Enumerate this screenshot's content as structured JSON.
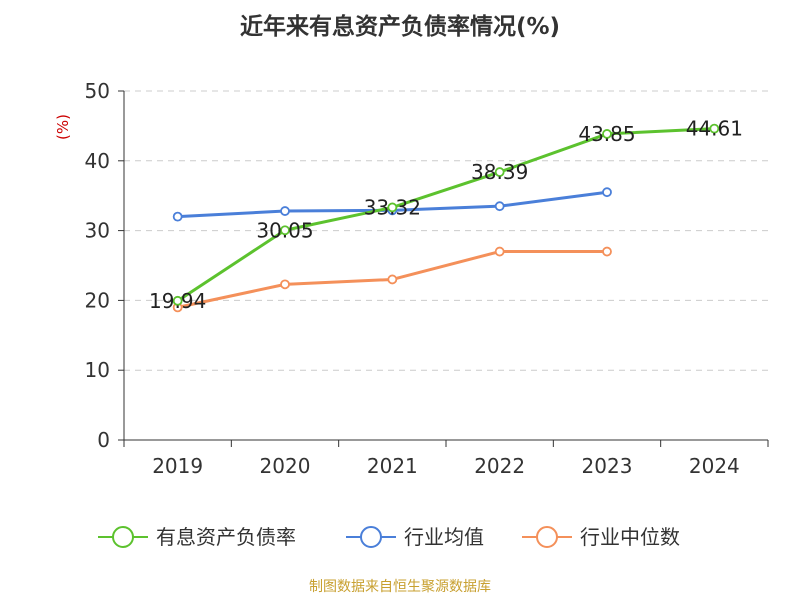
{
  "chart_data": {
    "type": "line",
    "title": "近年来有息资产负债率情况(%)",
    "ylabel": "(%)",
    "xlabel": "",
    "categories": [
      "2019",
      "2020",
      "2021",
      "2022",
      "2023",
      "2024"
    ],
    "ylim": [
      0,
      50
    ],
    "yticks": [
      0,
      10,
      20,
      30,
      40,
      50
    ],
    "grid": true,
    "legend_position": "bottom",
    "series": [
      {
        "name": "有息资产负债率",
        "color": "#5cc22e",
        "values": [
          19.94,
          30.05,
          33.32,
          38.39,
          43.85,
          44.61
        ],
        "data_labels": [
          "19.94",
          "30.05",
          "33.32",
          "38.39",
          "43.85",
          "44.61"
        ]
      },
      {
        "name": "行业均值",
        "color": "#4a7fd9",
        "values": [
          32.0,
          32.8,
          32.9,
          33.5,
          35.5,
          null
        ]
      },
      {
        "name": "行业中位数",
        "color": "#f4905a",
        "values": [
          19.0,
          22.3,
          23.0,
          27.0,
          27.0,
          null
        ]
      }
    ]
  },
  "source": "制图数据来自恒生聚源数据库"
}
